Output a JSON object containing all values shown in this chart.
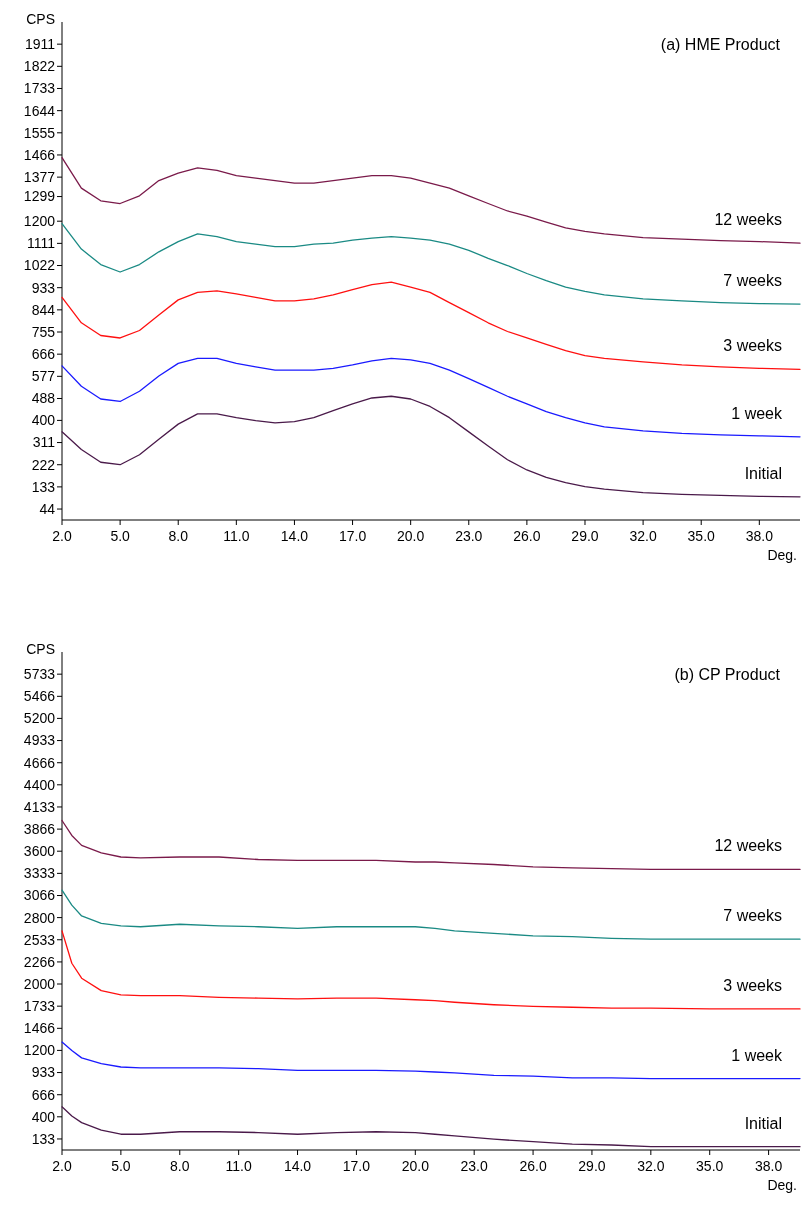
{
  "chart_data": [
    {
      "type": "line",
      "title": "(a) HME Product",
      "xlabel": "Deg.",
      "ylabel": "CPS",
      "x": [
        2,
        3,
        4,
        5,
        6,
        7,
        8,
        9,
        10,
        11,
        12,
        13,
        14,
        15,
        16,
        17,
        18,
        19,
        20,
        21,
        22,
        23,
        24,
        25,
        26,
        27,
        28,
        29,
        30,
        32,
        34,
        36,
        38,
        40.1
      ],
      "xlim": [
        2,
        40.1
      ],
      "ylim": [
        0,
        2000
      ],
      "xticks": [
        {
          "value": 2,
          "label": "2.0"
        },
        {
          "value": 5,
          "label": "5.0"
        },
        {
          "value": 8,
          "label": "8.0"
        },
        {
          "value": 11,
          "label": "11.0"
        },
        {
          "value": 14,
          "label": "14.0"
        },
        {
          "value": 17,
          "label": "17.0"
        },
        {
          "value": 20,
          "label": "20.0"
        },
        {
          "value": 23,
          "label": "23.0"
        },
        {
          "value": 26,
          "label": "26.0"
        },
        {
          "value": 29,
          "label": "29.0"
        },
        {
          "value": 32,
          "label": "32.0"
        },
        {
          "value": 35,
          "label": "35.0"
        },
        {
          "value": 38,
          "label": "38.0"
        }
      ],
      "yticks": [
        44,
        133,
        222,
        311,
        400,
        488,
        577,
        666,
        755,
        844,
        933,
        1022,
        1111,
        1200,
        1299,
        1377,
        1466,
        1555,
        1644,
        1733,
        1822,
        1911
      ],
      "series": [
        {
          "name": "12 weeks",
          "color": "#7a1a4a",
          "values": [
            1455,
            1333,
            1282,
            1271,
            1302,
            1363,
            1393,
            1414,
            1404,
            1383,
            1373,
            1363,
            1353,
            1353,
            1363,
            1373,
            1383,
            1383,
            1373,
            1353,
            1333,
            1302,
            1271,
            1241,
            1220,
            1196,
            1173,
            1159,
            1149,
            1134,
            1128,
            1122,
            1118,
            1112
          ]
        },
        {
          "name": "7 weeks",
          "color": "#1a8a84",
          "values": [
            1190,
            1088,
            1026,
            996,
            1026,
            1077,
            1118,
            1149,
            1138,
            1118,
            1108,
            1098,
            1098,
            1108,
            1112,
            1124,
            1132,
            1138,
            1132,
            1124,
            1108,
            1083,
            1051,
            1022,
            990,
            961,
            935,
            918,
            904,
            888,
            880,
            873,
            869,
            867
          ]
        },
        {
          "name": "3 weeks",
          "color": "#ff1010",
          "values": [
            894,
            792,
            741,
            731,
            761,
            823,
            884,
            914,
            920,
            908,
            894,
            880,
            880,
            888,
            904,
            925,
            945,
            955,
            935,
            914,
            873,
            833,
            792,
            757,
            731,
            705,
            680,
            660,
            649,
            635,
            623,
            615,
            609,
            605
          ]
        },
        {
          "name": "1 week",
          "color": "#1a1aff",
          "values": [
            619,
            537,
            486,
            476,
            517,
            578,
            629,
            649,
            649,
            629,
            615,
            602,
            602,
            602,
            609,
            623,
            639,
            649,
            643,
            629,
            602,
            568,
            533,
            497,
            466,
            435,
            411,
            390,
            374,
            358,
            348,
            342,
            338,
            334
          ]
        },
        {
          "name": "Initial",
          "color": "#4a1a4a",
          "values": [
            354,
            283,
            232,
            222,
            262,
            324,
            385,
            426,
            426,
            411,
            399,
            390,
            395,
            411,
            439,
            466,
            490,
            497,
            486,
            456,
            411,
            354,
            297,
            242,
            201,
            171,
            150,
            134,
            124,
            110,
            103,
            99,
            95,
            93
          ]
        }
      ]
    },
    {
      "type": "line",
      "title": "(b) CP Product",
      "xlabel": "Deg.",
      "ylabel": "CPS",
      "x": [
        2,
        2.5,
        3,
        4,
        5,
        6,
        8,
        10,
        12,
        14,
        16,
        18,
        20,
        21,
        22,
        24,
        26,
        28,
        30,
        32,
        35,
        39.6
      ],
      "xlim": [
        2,
        39.6
      ],
      "ylim": [
        0,
        6000
      ],
      "xticks": [
        {
          "value": 2,
          "label": "2.0"
        },
        {
          "value": 5,
          "label": "5.0"
        },
        {
          "value": 8,
          "label": "8.0"
        },
        {
          "value": 11,
          "label": "11.0"
        },
        {
          "value": 14,
          "label": "14.0"
        },
        {
          "value": 17,
          "label": "17.0"
        },
        {
          "value": 20,
          "label": "20.0"
        },
        {
          "value": 23,
          "label": "23.0"
        },
        {
          "value": 26,
          "label": "26.0"
        },
        {
          "value": 29,
          "label": "29.0"
        },
        {
          "value": 32,
          "label": "32.0"
        },
        {
          "value": 35,
          "label": "35.0"
        },
        {
          "value": 38,
          "label": "38.0"
        }
      ],
      "yticks": [
        133,
        400,
        666,
        933,
        1200,
        1466,
        1733,
        2000,
        2266,
        2533,
        2800,
        3066,
        3333,
        3600,
        3866,
        4133,
        4400,
        4666,
        4933,
        5200,
        5466,
        5733
      ],
      "series": [
        {
          "name": "12 weeks",
          "color": "#7a1a4a",
          "values": [
            3970,
            3790,
            3670,
            3580,
            3530,
            3520,
            3530,
            3530,
            3500,
            3490,
            3490,
            3490,
            3470,
            3470,
            3460,
            3440,
            3410,
            3400,
            3390,
            3380,
            3380,
            3380
          ]
        },
        {
          "name": "7 weeks",
          "color": "#1a8a84",
          "values": [
            3130,
            2950,
            2820,
            2730,
            2700,
            2690,
            2720,
            2700,
            2690,
            2670,
            2690,
            2690,
            2690,
            2670,
            2640,
            2610,
            2580,
            2570,
            2550,
            2540,
            2540,
            2540
          ]
        },
        {
          "name": "3 weeks",
          "color": "#ff1010",
          "values": [
            2640,
            2250,
            2070,
            1920,
            1870,
            1860,
            1860,
            1840,
            1830,
            1820,
            1830,
            1830,
            1810,
            1800,
            1780,
            1750,
            1730,
            1720,
            1710,
            1710,
            1700,
            1700
          ]
        },
        {
          "name": "1 week",
          "color": "#1a1aff",
          "values": [
            1300,
            1200,
            1110,
            1040,
            1000,
            990,
            990,
            990,
            980,
            960,
            960,
            960,
            950,
            940,
            930,
            900,
            890,
            870,
            870,
            860,
            860,
            860
          ]
        },
        {
          "name": "Initial",
          "color": "#4a1a4a",
          "values": [
            520,
            410,
            330,
            240,
            190,
            190,
            220,
            220,
            210,
            190,
            210,
            220,
            210,
            190,
            170,
            130,
            100,
            70,
            60,
            40,
            40,
            40
          ]
        }
      ]
    }
  ]
}
